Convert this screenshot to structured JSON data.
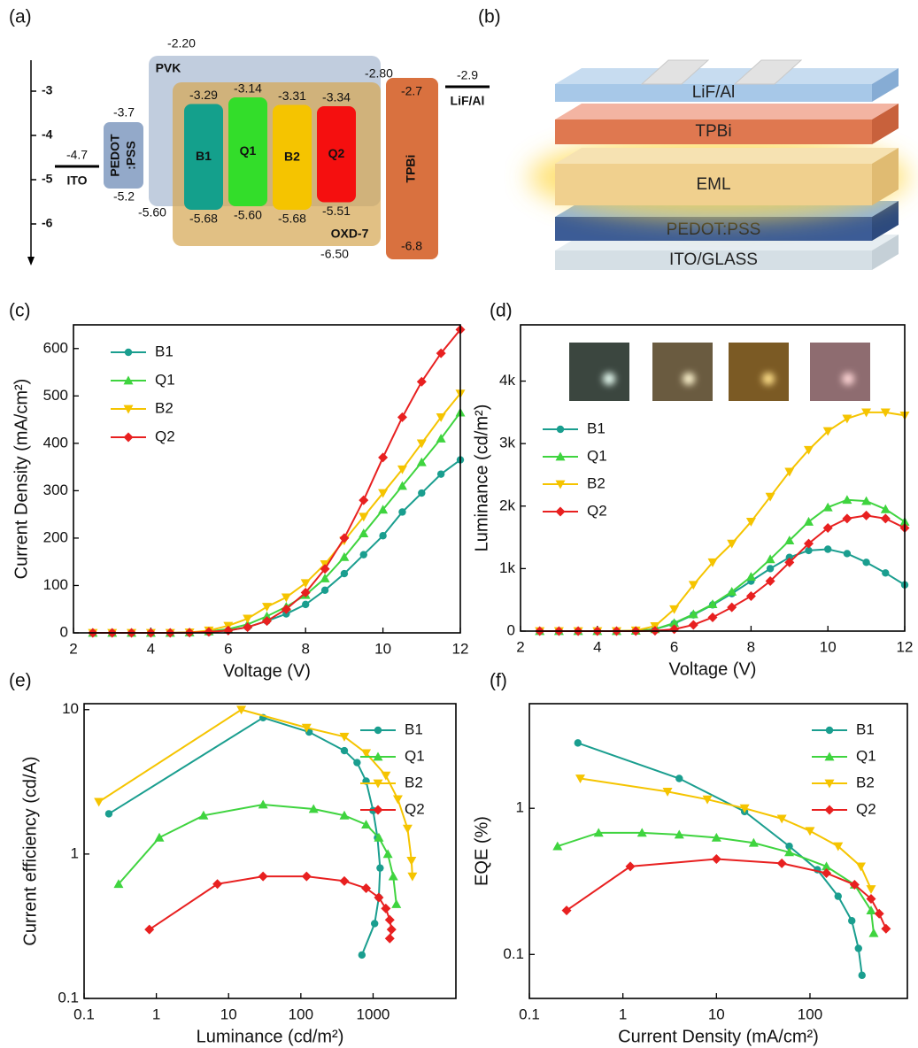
{
  "panel_a": {
    "label": "(a)",
    "yticks": [
      -3,
      -4,
      -5,
      -6
    ],
    "electrodes": [
      {
        "name": "ITO",
        "level": "-4.7"
      },
      {
        "name": "LiF/Al",
        "level": "-2.9"
      }
    ],
    "pedot": {
      "name_lines": [
        "PEDOT",
        ":PSS"
      ],
      "top": "-3.7",
      "bottom": "-5.2",
      "color": "#93a9c9"
    },
    "hosts": [
      {
        "name": "PVK",
        "top": "-2.20",
        "bottom": "-5.60",
        "color": "rgba(160,178,205,0.65)"
      },
      {
        "name": "OXD-7",
        "top": "-2.80",
        "bottom": "-6.50",
        "color": "rgba(214,168,84,0.72)"
      }
    ],
    "emitters": [
      {
        "name": "B1",
        "top": "-3.29",
        "bottom": "-5.68",
        "color": "#14a08c"
      },
      {
        "name": "Q1",
        "top": "-3.14",
        "bottom": "-5.60",
        "color": "#33dd2a"
      },
      {
        "name": "B2",
        "top": "-3.31",
        "bottom": "-5.68",
        "color": "#f5c400"
      },
      {
        "name": "Q2",
        "top": "-3.34",
        "bottom": "-5.51",
        "color": "#f50f0f"
      }
    ],
    "tpbi": {
      "name": "TPBi",
      "top": "-2.7",
      "bottom": "-6.8",
      "color": "#d9713f"
    }
  },
  "panel_b": {
    "label": "(b)",
    "layers": [
      "LiF/Al",
      "TPBi",
      "EML",
      "PEDOT:PSS",
      "ITO/GLASS"
    ]
  },
  "chart_data": [
    {
      "type": "line",
      "label": "(c)",
      "xlabel": "Voltage (V)",
      "ylabel": "Current Density (mA/cm²)",
      "x": [
        2.5,
        3,
        3.5,
        4,
        4.5,
        5,
        5.5,
        6,
        6.5,
        7,
        7.5,
        8,
        8.5,
        9,
        9.5,
        10,
        10.5,
        11,
        11.5,
        12
      ],
      "xlim": [
        2,
        12
      ],
      "xticks": [
        2,
        4,
        6,
        8,
        10,
        12
      ],
      "ylim": [
        0,
        650
      ],
      "yticks": [
        0,
        100,
        200,
        300,
        400,
        500,
        600
      ],
      "legend": "upper left",
      "series": [
        {
          "name": "B1",
          "color": "#1a9e8f",
          "marker": "circle",
          "values": [
            0,
            0,
            0,
            0,
            0,
            0.5,
            1,
            5,
            12,
            25,
            40,
            60,
            90,
            125,
            165,
            205,
            255,
            295,
            335,
            365
          ]
        },
        {
          "name": "Q1",
          "color": "#3fd43f",
          "marker": "triangle-up",
          "values": [
            0,
            0,
            0,
            0,
            0,
            1,
            3,
            8,
            18,
            35,
            55,
            80,
            115,
            160,
            210,
            260,
            310,
            360,
            410,
            465
          ]
        },
        {
          "name": "B2",
          "color": "#f5c400",
          "marker": "triangle-down",
          "values": [
            0,
            0,
            0,
            0,
            0,
            1,
            5,
            15,
            30,
            55,
            75,
            105,
            145,
            195,
            245,
            295,
            345,
            400,
            455,
            505
          ]
        },
        {
          "name": "Q2",
          "color": "#e82020",
          "marker": "diamond",
          "values": [
            0,
            0,
            0,
            0,
            0,
            0.5,
            2,
            5,
            12,
            25,
            50,
            85,
            135,
            200,
            280,
            370,
            455,
            530,
            590,
            640
          ]
        }
      ]
    },
    {
      "type": "line",
      "label": "(d)",
      "xlabel": "Voltage (V)",
      "ylabel": "Luminance (cd/m²)",
      "x": [
        2.5,
        3,
        3.5,
        4,
        4.5,
        5,
        5.5,
        6,
        6.5,
        7,
        7.5,
        8,
        8.5,
        9,
        9.5,
        10,
        10.5,
        11,
        11.5,
        12
      ],
      "xlim": [
        2,
        12
      ],
      "xticks": [
        2,
        4,
        6,
        8,
        10,
        12
      ],
      "ylim": [
        0,
        4900
      ],
      "yticks": [
        0,
        {
          "value": 1000,
          "label": "1k"
        },
        {
          "value": 2000,
          "label": "2k"
        },
        {
          "value": 3000,
          "label": "3k"
        },
        {
          "value": 4000,
          "label": "4k"
        }
      ],
      "legend": "center left",
      "series": [
        {
          "name": "B1",
          "color": "#1a9e8f",
          "marker": "circle",
          "values": [
            0,
            0,
            0,
            0,
            0,
            5,
            30,
            120,
            260,
            420,
            600,
            800,
            1000,
            1180,
            1290,
            1310,
            1240,
            1100,
            930,
            740
          ]
        },
        {
          "name": "Q1",
          "color": "#3fd43f",
          "marker": "triangle-up",
          "values": [
            0,
            0,
            0,
            0,
            0,
            5,
            30,
            130,
            270,
            430,
            630,
            870,
            1150,
            1450,
            1750,
            1980,
            2100,
            2080,
            1950,
            1750
          ]
        },
        {
          "name": "B2",
          "color": "#f5c400",
          "marker": "triangle-down",
          "values": [
            0,
            0,
            0,
            0,
            0,
            10,
            80,
            350,
            740,
            1100,
            1400,
            1750,
            2150,
            2550,
            2900,
            3200,
            3400,
            3500,
            3500,
            3450
          ]
        },
        {
          "name": "Q2",
          "color": "#e82020",
          "marker": "diamond",
          "values": [
            0,
            0,
            0,
            0,
            0,
            0,
            5,
            30,
            100,
            220,
            380,
            560,
            800,
            1100,
            1400,
            1650,
            1800,
            1850,
            1800,
            1650
          ]
        }
      ]
    },
    {
      "type": "line",
      "label": "(e)",
      "xlabel": "Luminance (cd/m²)",
      "ylabel": "Current efficiency (cd/A)",
      "xscale": "log",
      "yscale": "log",
      "xlim": [
        0.1,
        14000
      ],
      "xticks": [
        0.1,
        1,
        10,
        100,
        1000
      ],
      "ylim": [
        0.1,
        11
      ],
      "yticks": [
        0.1,
        1,
        10
      ],
      "legend": "upper right",
      "series": [
        {
          "name": "B1",
          "color": "#1a9e8f",
          "marker": "circle",
          "x": [
            0.22,
            30,
            130,
            400,
            600,
            800,
            1000,
            1150,
            1250,
            1200,
            1050,
            700
          ],
          "values": [
            1.9,
            8.8,
            7.0,
            5.2,
            4.3,
            3.2,
            2.0,
            1.3,
            0.8,
            0.5,
            0.33,
            0.2
          ]
        },
        {
          "name": "Q1",
          "color": "#3fd43f",
          "marker": "triangle-up",
          "x": [
            0.3,
            1.1,
            4.5,
            30,
            150,
            400,
            800,
            1200,
            1600,
            1900,
            2100
          ],
          "values": [
            0.62,
            1.3,
            1.85,
            2.2,
            2.05,
            1.85,
            1.6,
            1.3,
            1.0,
            0.7,
            0.45
          ]
        },
        {
          "name": "B2",
          "color": "#f5c400",
          "marker": "triangle-down",
          "x": [
            0.16,
            15,
            120,
            400,
            800,
            1500,
            2200,
            3000,
            3400,
            3500
          ],
          "values": [
            2.3,
            10,
            7.5,
            6.5,
            5.0,
            3.5,
            2.4,
            1.5,
            0.9,
            0.7
          ]
        },
        {
          "name": "Q2",
          "color": "#e82020",
          "marker": "diamond",
          "x": [
            0.8,
            7,
            30,
            120,
            400,
            800,
            1200,
            1500,
            1700,
            1800,
            1700
          ],
          "values": [
            0.3,
            0.62,
            0.7,
            0.7,
            0.65,
            0.58,
            0.5,
            0.42,
            0.35,
            0.3,
            0.26
          ]
        }
      ]
    },
    {
      "type": "line",
      "label": "(f)",
      "xlabel": "Current Density (mA/cm²)",
      "ylabel": "EQE (%)",
      "xscale": "log",
      "yscale": "log",
      "xlim": [
        0.1,
        1100
      ],
      "xticks": [
        0.1,
        1,
        10,
        100
      ],
      "ylim": [
        0.05,
        5.2
      ],
      "yticks": [
        0.1,
        1
      ],
      "legend": "upper right",
      "series": [
        {
          "name": "B1",
          "color": "#1a9e8f",
          "marker": "circle",
          "x": [
            0.33,
            4,
            20,
            60,
            120,
            200,
            280,
            330,
            360
          ],
          "values": [
            2.8,
            1.6,
            0.95,
            0.55,
            0.38,
            0.25,
            0.17,
            0.11,
            0.072
          ]
        },
        {
          "name": "Q1",
          "color": "#3fd43f",
          "marker": "triangle-up",
          "x": [
            0.2,
            0.55,
            1.6,
            4,
            10,
            25,
            60,
            150,
            300,
            450,
            480
          ],
          "values": [
            0.55,
            0.68,
            0.68,
            0.66,
            0.63,
            0.58,
            0.5,
            0.4,
            0.3,
            0.2,
            0.14
          ]
        },
        {
          "name": "B2",
          "color": "#f5c400",
          "marker": "triangle-down",
          "x": [
            0.35,
            3,
            8,
            20,
            50,
            100,
            200,
            350,
            450
          ],
          "values": [
            1.6,
            1.3,
            1.15,
            1.0,
            0.85,
            0.7,
            0.55,
            0.4,
            0.28
          ]
        },
        {
          "name": "Q2",
          "color": "#e82020",
          "marker": "diamond",
          "x": [
            0.25,
            1.2,
            10,
            50,
            150,
            300,
            450,
            550,
            650
          ],
          "values": [
            0.2,
            0.4,
            0.45,
            0.42,
            0.36,
            0.3,
            0.24,
            0.19,
            0.15
          ]
        }
      ]
    }
  ]
}
